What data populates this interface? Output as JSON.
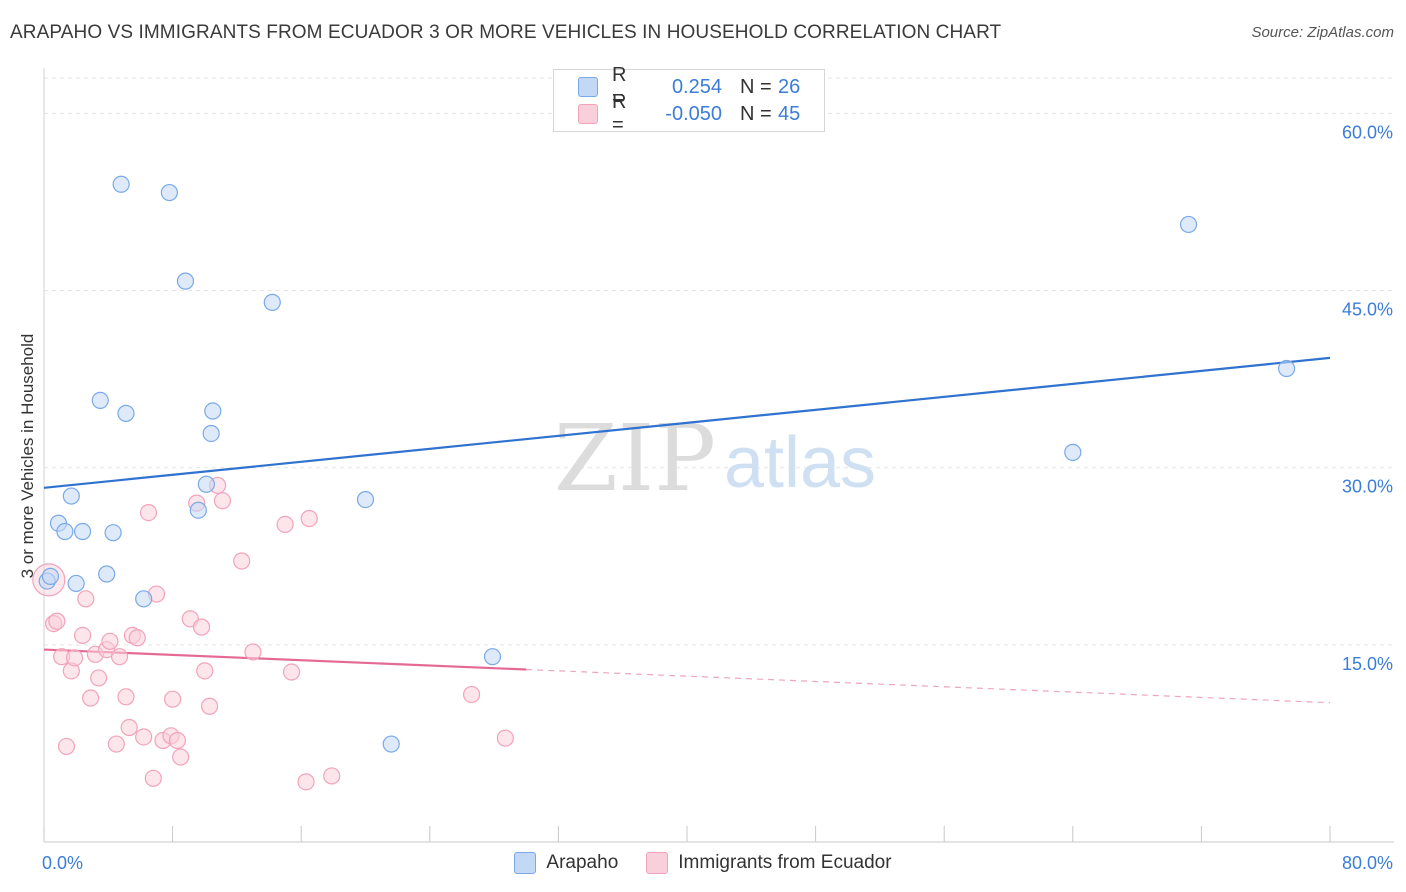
{
  "title": "ARAPAHO VS IMMIGRANTS FROM ECUADOR 3 OR MORE VEHICLES IN HOUSEHOLD CORRELATION CHART",
  "source": "Source: ZipAtlas.com",
  "watermark": {
    "zip": "ZIP",
    "atlas": "atlas"
  },
  "legend": {
    "r_label": "R =",
    "n_label": "N =",
    "rows": [
      {
        "r": "0.254",
        "n": "26"
      },
      {
        "r": "-0.050",
        "n": "45"
      }
    ]
  },
  "chart_data": {
    "type": "scatter",
    "title": "ARAPAHO VS IMMIGRANTS FROM ECUADOR 3 OR MORE VEHICLES IN HOUSEHOLD CORRELATION CHART",
    "xlabel": "",
    "ylabel": "3 or more Vehicles in Household",
    "xlim": [
      0,
      80
    ],
    "ylim": [
      0,
      63
    ],
    "x_tick_labels": [
      "0.0%",
      "80.0%"
    ],
    "y_ticks": [
      15,
      30,
      45,
      60
    ],
    "y_tick_labels": [
      "15.0%",
      "30.0%",
      "45.0%",
      "60.0%"
    ],
    "grid": true,
    "legend_position": "top-center",
    "series": [
      {
        "name": "Arapaho",
        "color": "#7aa9e8",
        "fill": "#c3d8f5",
        "r": 0.254,
        "n": 26,
        "trend": {
          "x": [
            0,
            80
          ],
          "y": [
            28.3,
            39.3
          ],
          "solid_until": 80
        },
        "points": [
          [
            0.2,
            20.4
          ],
          [
            0.4,
            20.8
          ],
          [
            0.9,
            25.3
          ],
          [
            1.3,
            24.6
          ],
          [
            1.7,
            27.6
          ],
          [
            2.0,
            20.2
          ],
          [
            2.4,
            24.6
          ],
          [
            3.5,
            35.7
          ],
          [
            3.9,
            21.0
          ],
          [
            4.3,
            24.5
          ],
          [
            4.8,
            54.0
          ],
          [
            5.1,
            34.6
          ],
          [
            6.2,
            18.9
          ],
          [
            7.8,
            53.3
          ],
          [
            8.8,
            45.8
          ],
          [
            9.6,
            26.4
          ],
          [
            10.1,
            28.6
          ],
          [
            10.4,
            32.9
          ],
          [
            10.5,
            34.8
          ],
          [
            14.2,
            44.0
          ],
          [
            20.0,
            27.3
          ],
          [
            21.6,
            6.6
          ],
          [
            27.9,
            14.0
          ],
          [
            64.0,
            31.3
          ],
          [
            71.2,
            50.6
          ],
          [
            77.3,
            38.4
          ]
        ]
      },
      {
        "name": "Immigrants from Ecuador",
        "color": "#f2a3ba",
        "fill": "#f9cfdb",
        "r": -0.05,
        "n": 45,
        "trend": {
          "x": [
            0,
            80
          ],
          "y": [
            14.6,
            10.1
          ],
          "solid_until": 30
        },
        "points": [
          [
            0.3,
            20.5
          ],
          [
            0.6,
            16.8
          ],
          [
            0.8,
            17.0
          ],
          [
            1.1,
            14.0
          ],
          [
            1.4,
            6.4
          ],
          [
            1.7,
            12.8
          ],
          [
            1.9,
            13.9
          ],
          [
            2.4,
            15.8
          ],
          [
            2.6,
            18.9
          ],
          [
            2.9,
            10.5
          ],
          [
            3.2,
            14.2
          ],
          [
            3.4,
            12.2
          ],
          [
            3.9,
            14.6
          ],
          [
            4.1,
            15.3
          ],
          [
            4.5,
            6.6
          ],
          [
            4.7,
            14.0
          ],
          [
            5.1,
            10.6
          ],
          [
            5.3,
            8.0
          ],
          [
            5.5,
            15.8
          ],
          [
            5.8,
            15.6
          ],
          [
            6.2,
            7.2
          ],
          [
            6.5,
            26.2
          ],
          [
            6.8,
            3.7
          ],
          [
            7.0,
            19.3
          ],
          [
            7.4,
            6.9
          ],
          [
            7.9,
            7.3
          ],
          [
            8.0,
            10.4
          ],
          [
            8.3,
            6.9
          ],
          [
            8.5,
            5.5
          ],
          [
            9.1,
            17.2
          ],
          [
            9.5,
            27.0
          ],
          [
            9.8,
            16.5
          ],
          [
            10.0,
            12.8
          ],
          [
            10.3,
            9.8
          ],
          [
            10.8,
            28.5
          ],
          [
            11.1,
            27.2
          ],
          [
            12.3,
            22.1
          ],
          [
            13.0,
            14.4
          ],
          [
            15.0,
            25.2
          ],
          [
            15.4,
            12.7
          ],
          [
            16.3,
            3.4
          ],
          [
            16.5,
            25.7
          ],
          [
            17.9,
            3.9
          ],
          [
            26.6,
            10.8
          ],
          [
            28.7,
            7.1
          ]
        ]
      }
    ]
  }
}
